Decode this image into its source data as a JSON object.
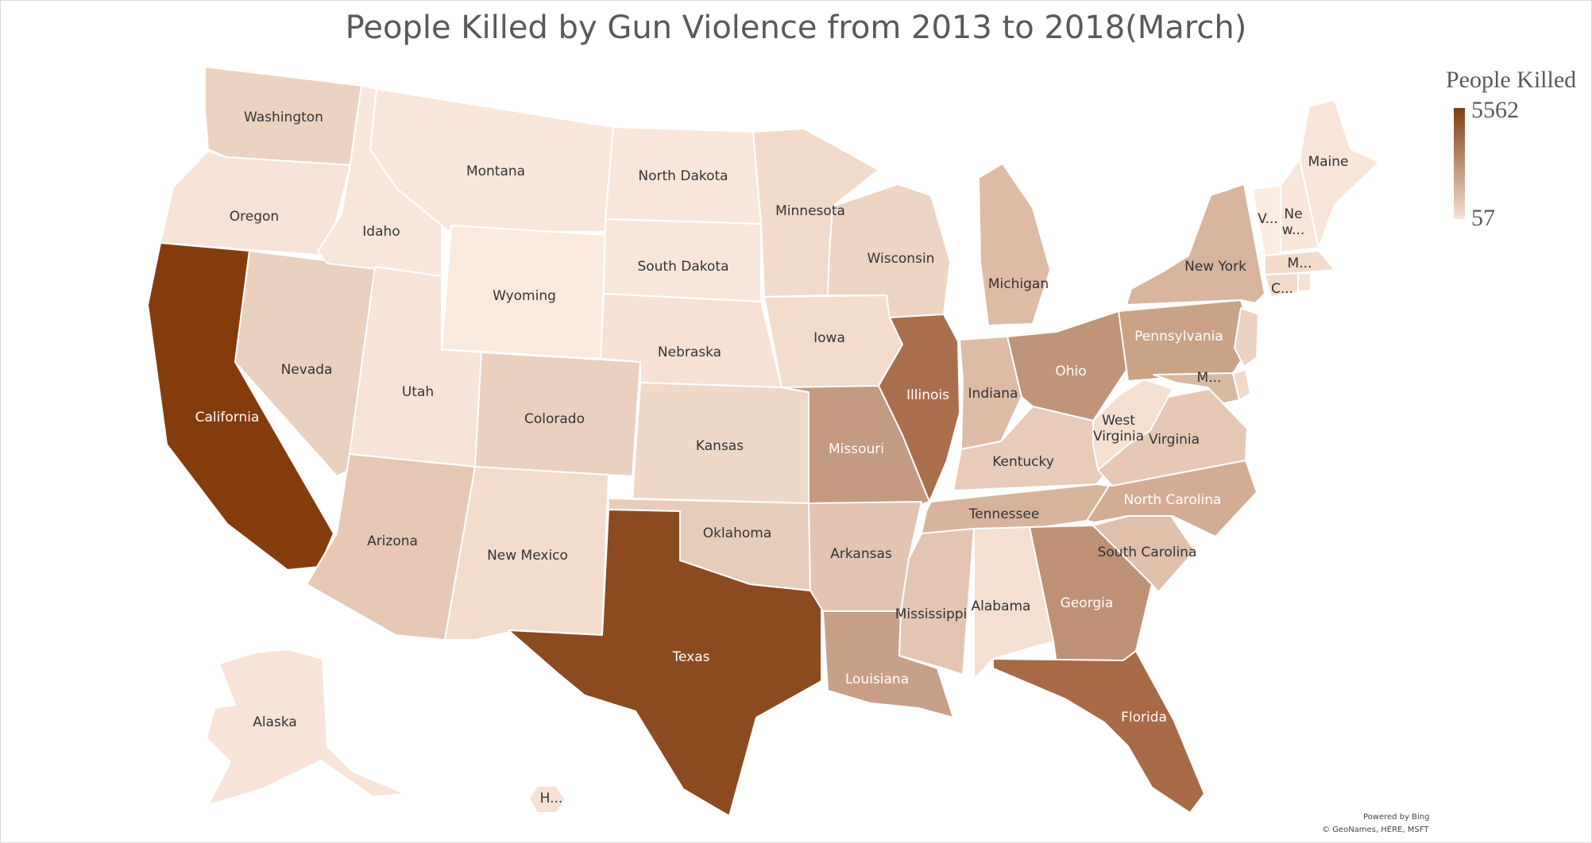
{
  "title": "People Killed by Gun Violence from 2013 to 2018(March)",
  "legend": {
    "title": "People Killed",
    "max": "5562",
    "min": "57",
    "color_max": "#7f3d12",
    "color_min": "#f6e2d6"
  },
  "credits": {
    "line1": "Powered by Bing",
    "line2": "© GeoNames, HERE, MSFT"
  },
  "states": [
    {
      "id": "washington",
      "label": "Washington",
      "color": "#ecd2c1",
      "text": "#333"
    },
    {
      "id": "oregon",
      "label": "Oregon",
      "color": "#f6e2d6",
      "text": "#333"
    },
    {
      "id": "california",
      "label": "California",
      "color": "#843c0c",
      "text": "#fff"
    },
    {
      "id": "nevada",
      "label": "Nevada",
      "color": "#ead0bf",
      "text": "#333"
    },
    {
      "id": "idaho",
      "label": "Idaho",
      "color": "#f9e6da",
      "text": "#333"
    },
    {
      "id": "montana",
      "label": "Montana",
      "color": "#f9e6da",
      "text": "#333"
    },
    {
      "id": "wyoming",
      "label": "Wyoming",
      "color": "#faeade",
      "text": "#333"
    },
    {
      "id": "utah",
      "label": "Utah",
      "color": "#f7e3d7",
      "text": "#333"
    },
    {
      "id": "arizona",
      "label": "Arizona",
      "color": "#e6c8b4",
      "text": "#333"
    },
    {
      "id": "colorado",
      "label": "Colorado",
      "color": "#ebd0bf",
      "text": "#333"
    },
    {
      "id": "new-mexico",
      "label": "New Mexico",
      "color": "#f4dccd",
      "text": "#333"
    },
    {
      "id": "north-dakota",
      "label": "North Dakota",
      "color": "#f9e6da",
      "text": "#333"
    },
    {
      "id": "south-dakota",
      "label": "South Dakota",
      "color": "#f9e6da",
      "text": "#333"
    },
    {
      "id": "nebraska",
      "label": "Nebraska",
      "color": "#f6e1d4",
      "text": "#333"
    },
    {
      "id": "kansas",
      "label": "Kansas",
      "color": "#f0d8c9",
      "text": "#333"
    },
    {
      "id": "oklahoma",
      "label": "Oklahoma",
      "color": "#e8ccba",
      "text": "#333"
    },
    {
      "id": "texas",
      "label": "Texas",
      "color": "#8c4a20",
      "text": "#fff"
    },
    {
      "id": "minnesota",
      "label": "Minnesota",
      "color": "#f2dacb",
      "text": "#333"
    },
    {
      "id": "iowa",
      "label": "Iowa",
      "color": "#f4dccd",
      "text": "#333"
    },
    {
      "id": "missouri",
      "label": "Missouri",
      "color": "#c49a80",
      "text": "#fff"
    },
    {
      "id": "arkansas",
      "label": "Arkansas",
      "color": "#e3c4b0",
      "text": "#333"
    },
    {
      "id": "louisiana",
      "label": "Louisiana",
      "color": "#c8a087",
      "text": "#fff"
    },
    {
      "id": "wisconsin",
      "label": "Wisconsin",
      "color": "#eed4c3",
      "text": "#333"
    },
    {
      "id": "illinois",
      "label": "Illinois",
      "color": "#a96e4c",
      "text": "#fff"
    },
    {
      "id": "michigan",
      "label": "Michigan",
      "color": "#ddbba5",
      "text": "#333"
    },
    {
      "id": "indiana",
      "label": "Indiana",
      "color": "#ddbba5",
      "text": "#333"
    },
    {
      "id": "ohio",
      "label": "Ohio",
      "color": "#c09478",
      "text": "#fff"
    },
    {
      "id": "kentucky",
      "label": "Kentucky",
      "color": "#e8cbb8",
      "text": "#333"
    },
    {
      "id": "tennessee",
      "label": "Tennessee",
      "color": "#d8b39b",
      "text": "#333"
    },
    {
      "id": "mississippi",
      "label": "Mississippi",
      "color": "#e4c5b1",
      "text": "#333"
    },
    {
      "id": "alabama",
      "label": "Alabama",
      "color": "#f4dfd1",
      "text": "#333"
    },
    {
      "id": "georgia",
      "label": "Georgia",
      "color": "#bf9174",
      "text": "#fff"
    },
    {
      "id": "florida",
      "label": "Florida",
      "color": "#a86a46",
      "text": "#fff"
    },
    {
      "id": "south-carolina",
      "label": "South Carolina",
      "color": "#e0c0ab",
      "text": "#333"
    },
    {
      "id": "north-carolina",
      "label": "North Carolina",
      "color": "#d3ac93",
      "text": "#fff"
    },
    {
      "id": "virginia",
      "label": "Virginia",
      "color": "#e6c8b4",
      "text": "#333"
    },
    {
      "id": "west-virginia",
      "label": "West Virginia",
      "color": "#f4dfd1",
      "text": "#333"
    },
    {
      "id": "pennsylvania",
      "label": "Pennsylvania",
      "color": "#caa286",
      "text": "#fff"
    },
    {
      "id": "new-york",
      "label": "New York",
      "color": "#d8b49c",
      "text": "#333"
    },
    {
      "id": "maryland",
      "label": "M...",
      "color": "#d9b8a2",
      "text": "#333"
    },
    {
      "id": "new-jersey",
      "label": "",
      "color": "#ecd2c1",
      "text": "#333"
    },
    {
      "id": "delaware",
      "label": "",
      "color": "#f2dacb",
      "text": "#333"
    },
    {
      "id": "connecticut",
      "label": "C...",
      "color": "#f2dacb",
      "text": "#333"
    },
    {
      "id": "massachusetts",
      "label": "M...",
      "color": "#f2dacb",
      "text": "#333"
    },
    {
      "id": "rhode-island",
      "label": "",
      "color": "#f6e1d4",
      "text": "#333"
    },
    {
      "id": "vermont",
      "label": "V...",
      "color": "#fbece2",
      "text": "#333"
    },
    {
      "id": "new-hampshire",
      "label": "Ne w...",
      "color": "#f9e6da",
      "text": "#333"
    },
    {
      "id": "maine",
      "label": "Maine",
      "color": "#f8e4d8",
      "text": "#333"
    },
    {
      "id": "alaska",
      "label": "Alaska",
      "color": "#f7e3d7",
      "text": "#333"
    },
    {
      "id": "hawaii",
      "label": "H...",
      "color": "#f6e1d4",
      "text": "#333"
    }
  ]
}
